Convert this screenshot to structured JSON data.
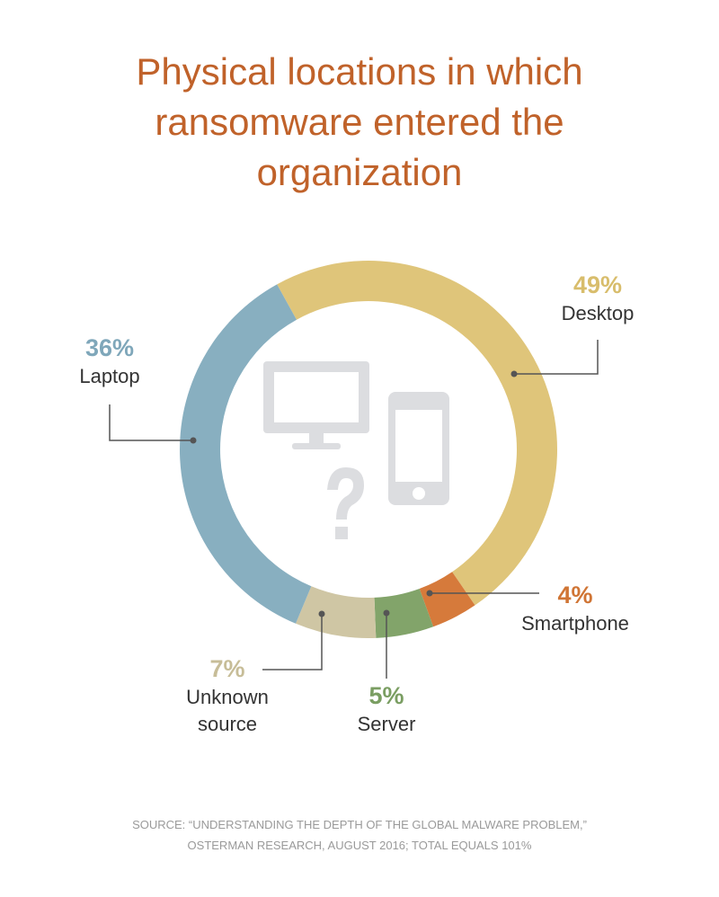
{
  "chart_data": {
    "type": "donut",
    "title": "Physical locations in which ransomware entered the organization",
    "categories": [
      "Desktop",
      "Smartphone",
      "Server",
      "Unknown source",
      "Laptop"
    ],
    "values": [
      49,
      4,
      5,
      7,
      36
    ],
    "value_labels": [
      "49%",
      "4%",
      "5%",
      "7%",
      "36%"
    ],
    "colors": [
      "#dfc57a",
      "#d67a3b",
      "#82a46a",
      "#cfc6a4",
      "#88afc0"
    ],
    "label_colors": [
      "#d8bd6c",
      "#d07535",
      "#7a9e62",
      "#c7bd98",
      "#7fa7ba"
    ],
    "note": "SOURCE: “UNDERSTANDING THE DEPTH OF THE GLOBAL MALWARE PROBLEM,” OSTERMAN RESEARCH, AUGUST 2016; TOTAL EQUALS 101%"
  }
}
